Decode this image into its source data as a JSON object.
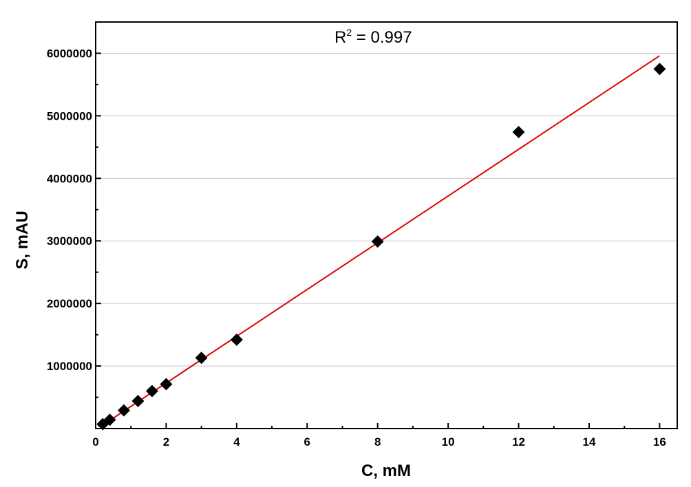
{
  "chart_data": {
    "type": "scatter",
    "xlabel": "C, mM",
    "ylabel": "S, mAU",
    "xlim": [
      0,
      16.5
    ],
    "ylim": [
      0,
      6500000
    ],
    "x_ticks": [
      0,
      2,
      4,
      6,
      8,
      10,
      12,
      14,
      16
    ],
    "y_ticks": [
      1000000,
      2000000,
      3000000,
      4000000,
      5000000,
      6000000
    ],
    "x_minor_ticks": [
      1,
      3,
      5,
      7,
      9,
      11,
      13,
      15
    ],
    "y_minor_ticks": [
      500000,
      1500000,
      2500000,
      3500000,
      4500000,
      5500000,
      6500000
    ],
    "grid": "horizontal",
    "annotation": {
      "base": "R",
      "sup": "2",
      "text": " = 0.997"
    },
    "marker": {
      "shape": "diamond",
      "color": "#000000"
    },
    "fit_line": {
      "color": "#e00000",
      "x": [
        0.2,
        16
      ],
      "y": [
        55000,
        5960000
      ]
    },
    "points": {
      "x": [
        0.2,
        0.4,
        0.8,
        1.2,
        1.6,
        2,
        3,
        4,
        8,
        12,
        16
      ],
      "y": [
        70000,
        140000,
        290000,
        440000,
        600000,
        710000,
        1130000,
        1420000,
        2990000,
        4740000,
        5750000
      ]
    }
  }
}
